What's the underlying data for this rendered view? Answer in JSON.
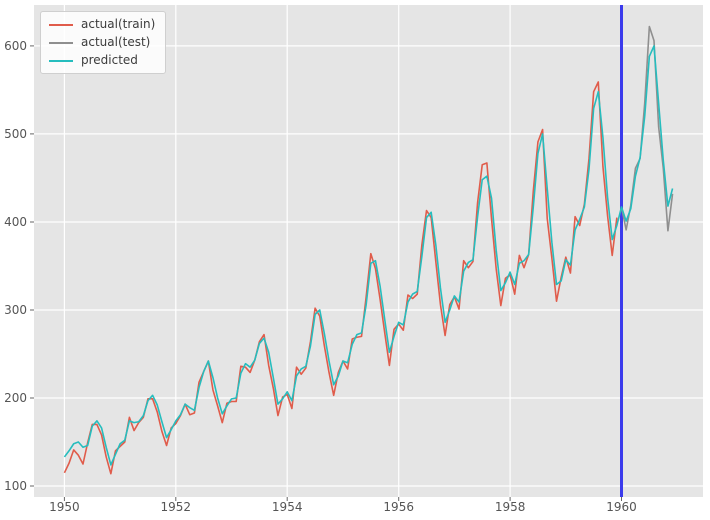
{
  "figure": {
    "background": "#ffffff",
    "axes_background": "#e5e5e5",
    "grid_color": "#ffffff",
    "tick_label_color": "#555555"
  },
  "legend": {
    "position": "upper-left",
    "items": [
      {
        "label": "actual(train)",
        "color": "#e05c4b"
      },
      {
        "label": "actual(test)",
        "color": "#8f8f8f"
      },
      {
        "label": "predicted",
        "color": "#26bdbe"
      }
    ]
  },
  "chart_data": {
    "type": "line",
    "title": "",
    "xlabel": "",
    "ylabel": "",
    "grid": true,
    "x_start_year": 1950.0,
    "x_step_months": 1,
    "xlim": [
      1949.454,
      1961.463
    ],
    "ylim": [
      87.5,
      646.5
    ],
    "xticks": [
      1950,
      1952,
      1954,
      1956,
      1958,
      1960
    ],
    "xtick_labels": [
      "1950",
      "1952",
      "1954",
      "1956",
      "1958",
      "1960"
    ],
    "yticks": [
      100,
      200,
      300,
      400,
      500,
      600
    ],
    "ytick_labels": [
      "100",
      "200",
      "300",
      "400",
      "500",
      "600"
    ],
    "vline": {
      "x": 1960.0,
      "color": "#3b3bec",
      "width": 3
    },
    "series": [
      {
        "name": "actual(train)",
        "color": "#e05c4b",
        "start_month_index": 0,
        "values": [
          115,
          126,
          141,
          135,
          125,
          149,
          170,
          170,
          158,
          133,
          114,
          140,
          145,
          150,
          178,
          163,
          172,
          178,
          199,
          199,
          184,
          162,
          146,
          166,
          171,
          180,
          193,
          181,
          183,
          218,
          230,
          242,
          209,
          191,
          172,
          194,
          196,
          196,
          236,
          235,
          229,
          243,
          264,
          272,
          237,
          211,
          180,
          201,
          204,
          188,
          235,
          227,
          234,
          264,
          302,
          293,
          259,
          229,
          203,
          229,
          242,
          233,
          267,
          269,
          270,
          315,
          364,
          347,
          312,
          274,
          237,
          278,
          284,
          277,
          317,
          313,
          318,
          374,
          413,
          405,
          355,
          306,
          271,
          306,
          315,
          301,
          356,
          348,
          355,
          422,
          465,
          467,
          404,
          347,
          305,
          336,
          340,
          318,
          362,
          348,
          363,
          435,
          491,
          505,
          404,
          359,
          310,
          337,
          360,
          342,
          406,
          396,
          420,
          472,
          548,
          559,
          463,
          407,
          362,
          405
        ]
      },
      {
        "name": "actual(test)",
        "color": "#8f8f8f",
        "start_month_index": 120,
        "values": [
          417,
          391,
          419,
          461,
          472,
          535,
          622,
          606,
          508,
          461,
          390,
          432
        ]
      },
      {
        "name": "predicted",
        "color": "#26bdbe",
        "start_month_index": 0,
        "values": [
          133,
          140,
          148,
          150,
          144,
          146,
          168,
          174,
          166,
          144,
          124,
          136,
          148,
          152,
          174,
          172,
          173,
          180,
          197,
          203,
          192,
          173,
          155,
          164,
          174,
          181,
          193,
          189,
          186,
          212,
          230,
          242,
          223,
          200,
          182,
          191,
          199,
          200,
          228,
          239,
          235,
          243,
          262,
          268,
          252,
          223,
          193,
          199,
          207,
          197,
          225,
          233,
          236,
          259,
          295,
          300,
          273,
          242,
          215,
          225,
          242,
          240,
          261,
          272,
          274,
          306,
          353,
          356,
          327,
          289,
          252,
          270,
          286,
          283,
          309,
          318,
          321,
          361,
          405,
          411,
          374,
          325,
          286,
          300,
          316,
          309,
          344,
          354,
          357,
          406,
          448,
          452,
          427,
          368,
          322,
          331,
          343,
          329,
          353,
          356,
          363,
          417,
          478,
          500,
          438,
          377,
          329,
          333,
          357,
          351,
          391,
          403,
          417,
          460,
          529,
          548,
          496,
          428,
          380,
          396,
          417,
          401,
          415,
          452,
          473,
          520,
          588,
          600,
          535,
          470,
          418,
          438
        ]
      }
    ]
  }
}
